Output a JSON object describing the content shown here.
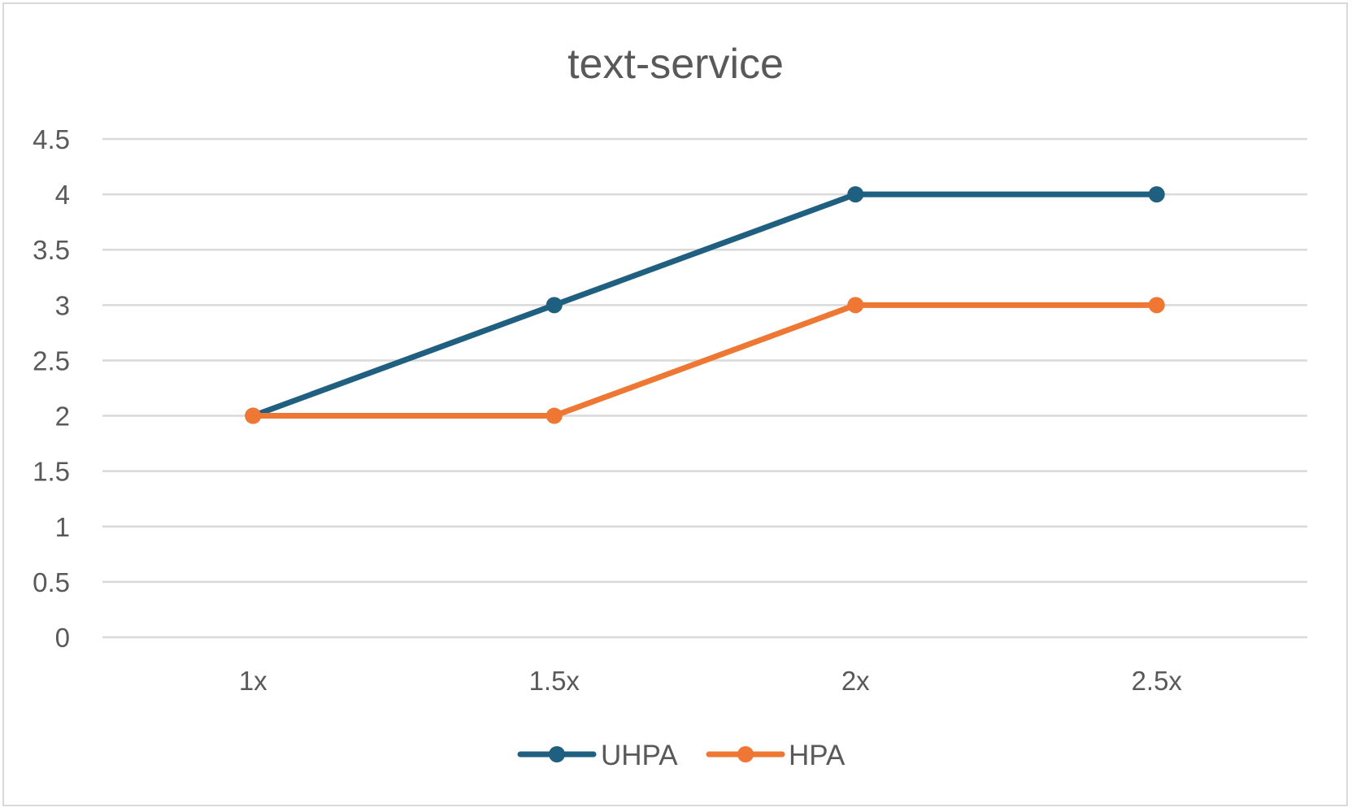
{
  "chart_data": {
    "type": "line",
    "title": "text-service",
    "xlabel": "",
    "ylabel": "",
    "categories": [
      "1x",
      "1.5x",
      "2x",
      "2.5x"
    ],
    "y_ticks": [
      "0",
      "0.5",
      "1",
      "1.5",
      "2",
      "2.5",
      "3",
      "3.5",
      "4",
      "4.5"
    ],
    "ylim": [
      0,
      4.5
    ],
    "grid": true,
    "legend_position": "bottom",
    "series": [
      {
        "name": "UHPA",
        "color": "#1F5F80",
        "values": [
          2,
          3,
          4,
          4
        ]
      },
      {
        "name": "HPA",
        "color": "#EE7733",
        "values": [
          2,
          2,
          3,
          3
        ]
      }
    ]
  }
}
